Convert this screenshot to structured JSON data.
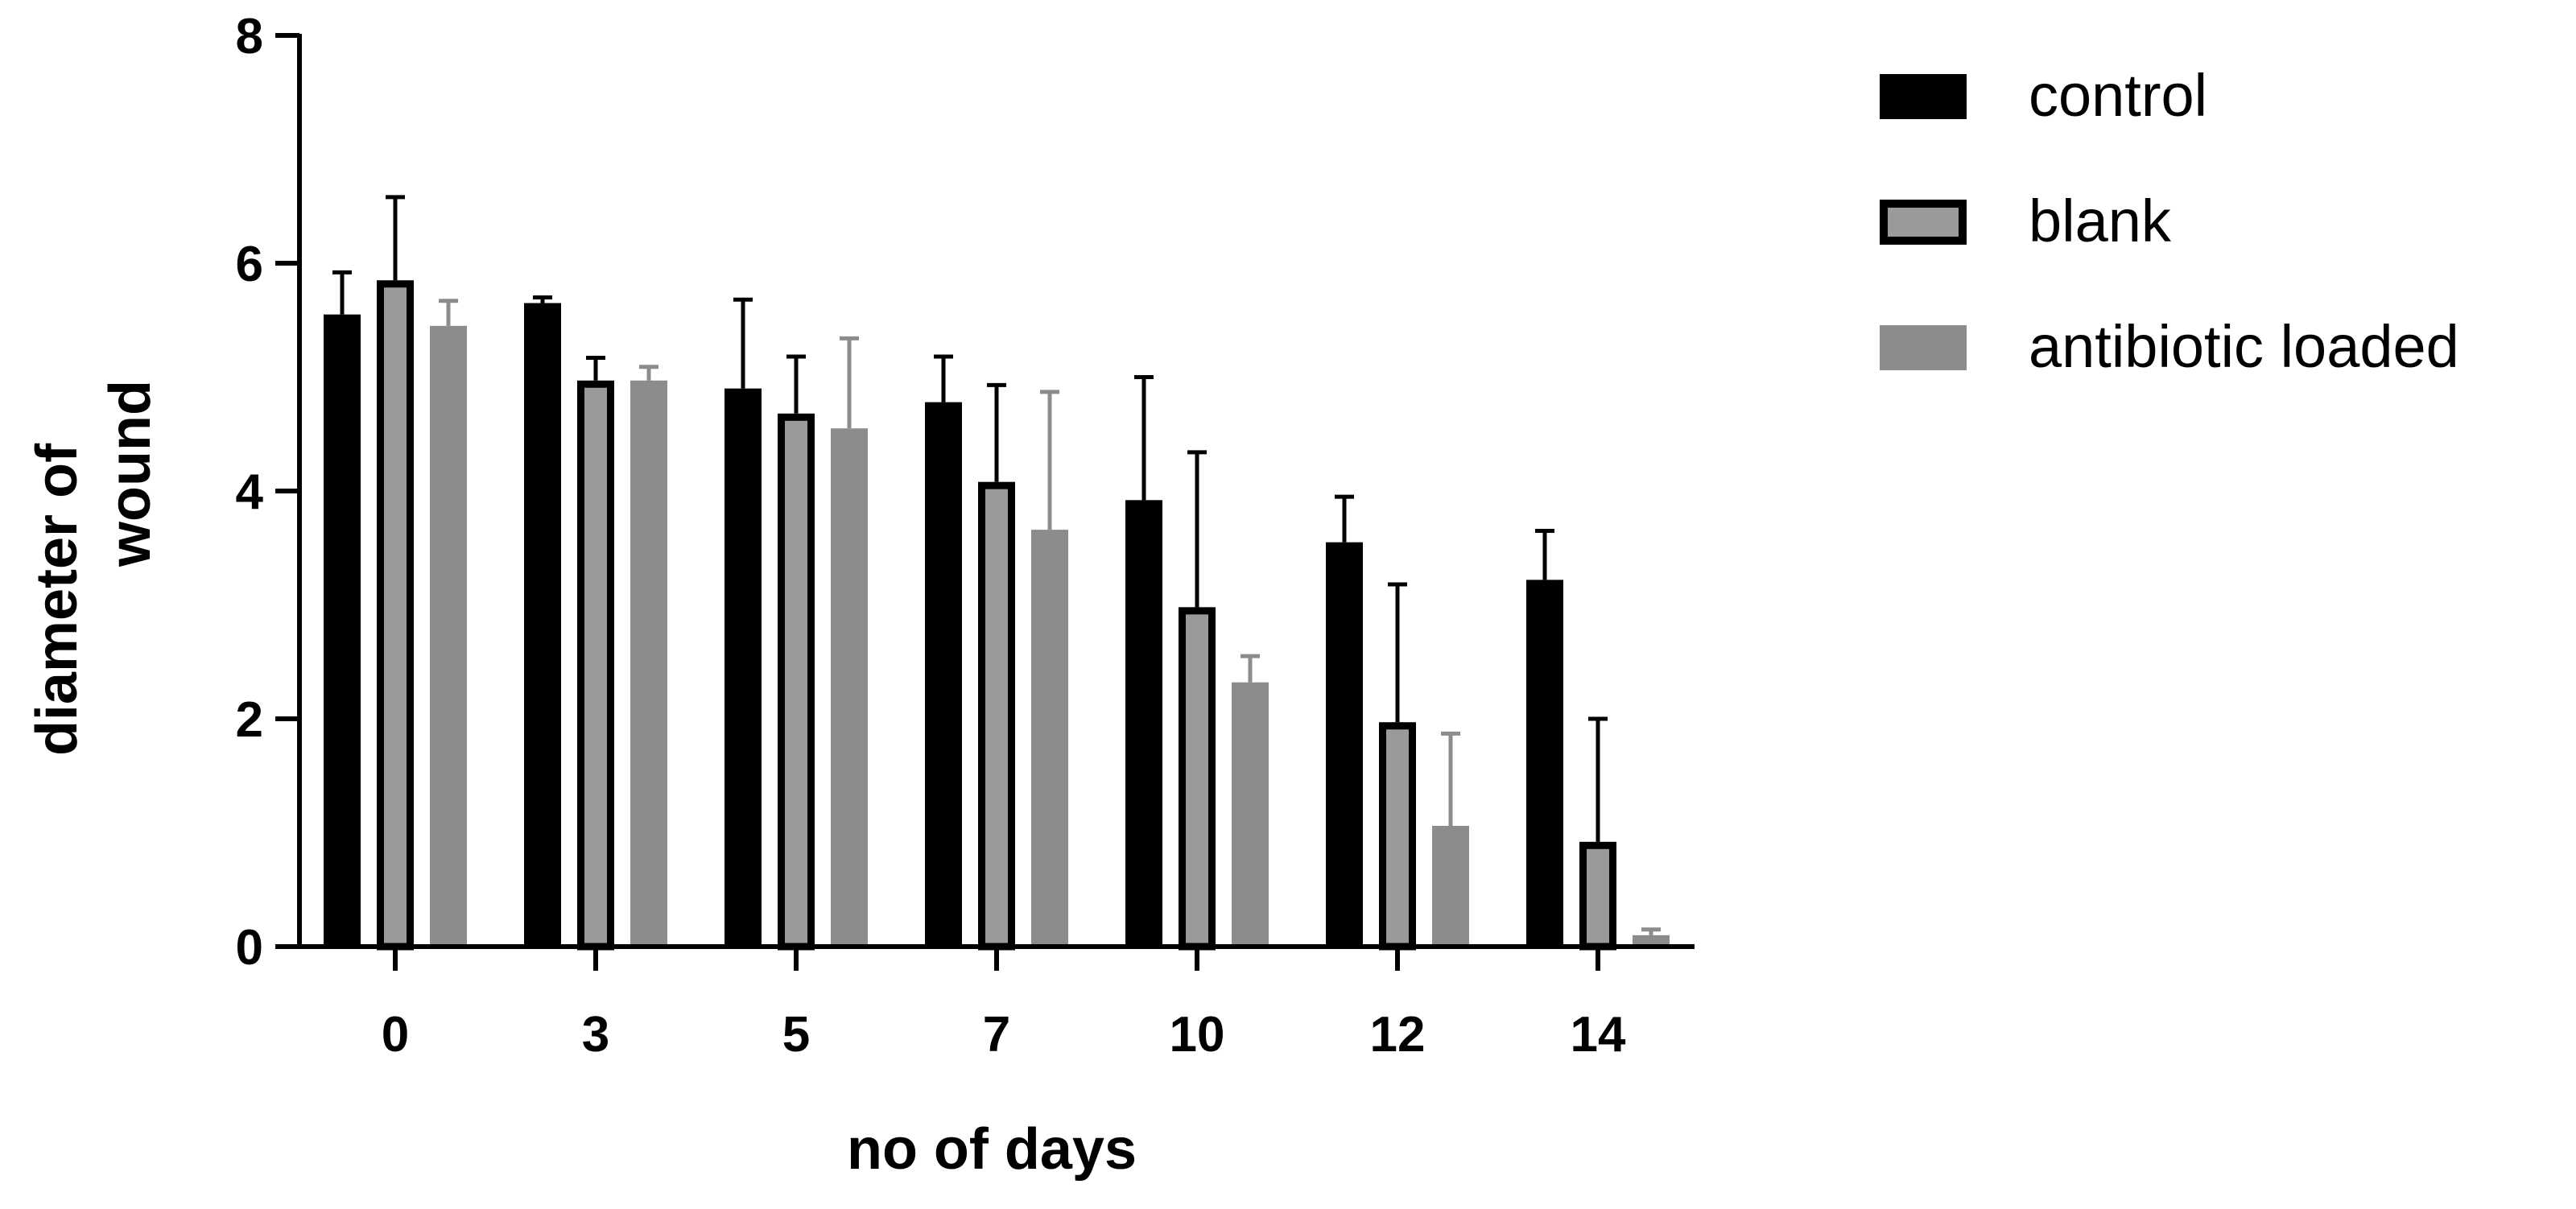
{
  "chart_data": {
    "type": "bar",
    "title": "",
    "xlabel": "no of days",
    "ylabel_lines": [
      "diameter of",
      "wound"
    ],
    "ylim": [
      0,
      8
    ],
    "yticks": [
      0,
      2,
      4,
      6,
      8
    ],
    "categories": [
      "0",
      "3",
      "5",
      "7",
      "10",
      "12",
      "14"
    ],
    "legend_position": "right",
    "series": [
      {
        "name": "control",
        "fill": "#000000",
        "stroke": "#000000",
        "values": [
          5.55,
          5.65,
          4.9,
          4.78,
          3.92,
          3.55,
          3.22
        ],
        "error": [
          0.37,
          0.05,
          0.78,
          0.4,
          1.08,
          0.4,
          0.43
        ]
      },
      {
        "name": "blank",
        "fill": "#9a9a9a",
        "stroke": "#000000",
        "values": [
          5.85,
          4.97,
          4.68,
          4.08,
          2.98,
          1.97,
          0.92
        ],
        "error": [
          0.73,
          0.2,
          0.5,
          0.85,
          1.36,
          1.21,
          1.08
        ]
      },
      {
        "name": "antibiotic loaded",
        "fill": "#8c8c8c",
        "stroke": "#8c8c8c",
        "values": [
          5.45,
          4.97,
          4.55,
          3.66,
          2.32,
          1.06,
          0.1
        ],
        "error": [
          0.22,
          0.12,
          0.79,
          1.21,
          0.23,
          0.81,
          0.05
        ]
      }
    ],
    "grid": false
  }
}
